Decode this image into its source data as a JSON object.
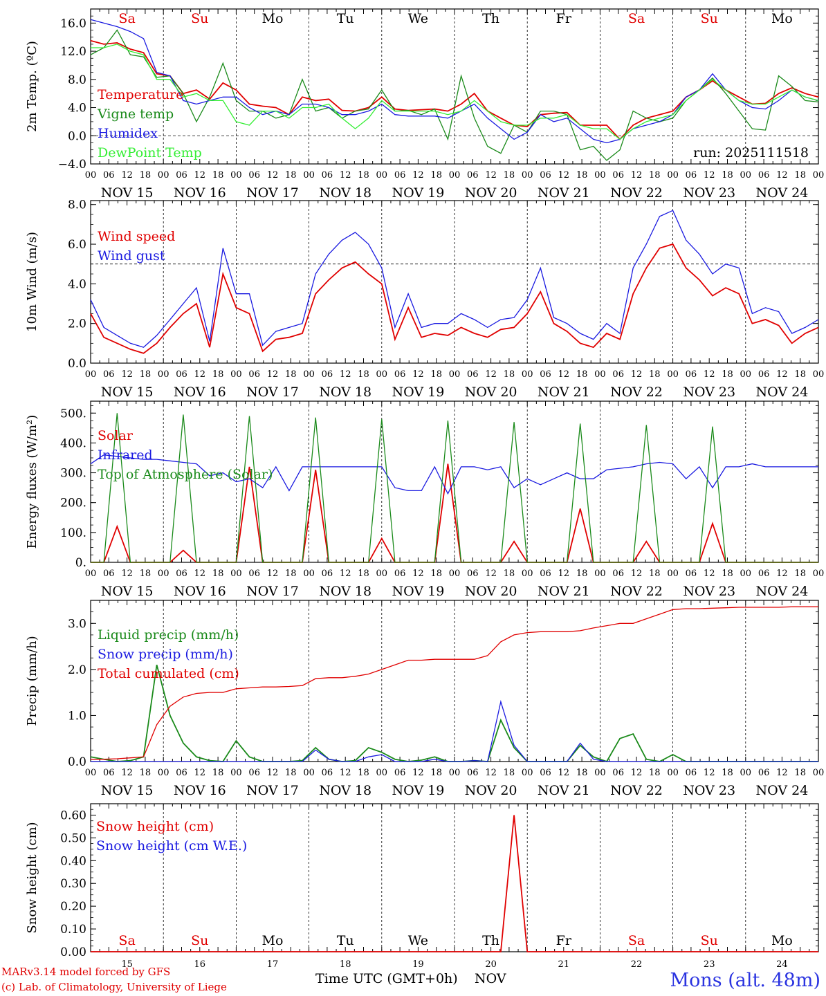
{
  "run_label": "run: 2025111518",
  "weekdays": [
    {
      "label": "Sa",
      "color": "#e00000"
    },
    {
      "label": "Su",
      "color": "#e00000"
    },
    {
      "label": "Mo",
      "color": "#000000"
    },
    {
      "label": "Tu",
      "color": "#000000"
    },
    {
      "label": "We",
      "color": "#000000"
    },
    {
      "label": "Th",
      "color": "#000000"
    },
    {
      "label": "Fr",
      "color": "#000000"
    },
    {
      "label": "Sa",
      "color": "#e00000"
    },
    {
      "label": "Su",
      "color": "#e00000"
    },
    {
      "label": "Mo",
      "color": "#000000"
    }
  ],
  "date_labels": [
    "NOV 15",
    "NOV 16",
    "NOV 17",
    "NOV 18",
    "NOV 19",
    "NOV 20",
    "NOV 21",
    "NOV 22",
    "NOV 23",
    "NOV 24"
  ],
  "hour_labels": [
    "00",
    "06",
    "12",
    "18"
  ],
  "day_numbers": [
    "15",
    "16",
    "17",
    "18",
    "19",
    "20",
    "21",
    "22",
    "23",
    "24"
  ],
  "colors": {
    "red": "#e00000",
    "green": "#1a8a1a",
    "blue": "#1a1ae0",
    "lightgreen": "#33ee33"
  },
  "chart_data": [
    {
      "type": "line",
      "ylabel": "2m Temp. (ºC)",
      "ylim": [
        -4,
        18
      ],
      "yticks": [
        -4,
        0,
        4,
        8,
        12,
        16
      ],
      "ytick_labels": [
        "−4.0",
        "0.0",
        "4.0",
        "8.0",
        "12.0",
        "16.0"
      ],
      "dashed_y": 0,
      "days": 10,
      "series": [
        {
          "name": "Temperature",
          "color": "#e00000",
          "values": [
            13.5,
            13.0,
            13.2,
            12.3,
            11.8,
            8.8,
            8.5,
            6.0,
            6.5,
            5.2,
            7.5,
            6.5,
            4.5,
            4.2,
            4.0,
            3.0,
            5.5,
            5.0,
            5.2,
            3.6,
            3.5,
            4.0,
            5.5,
            3.8,
            3.6,
            3.7,
            3.8,
            3.5,
            4.5,
            6.0,
            3.5,
            2.5,
            1.5,
            1.3,
            3.0,
            3.2,
            3.3,
            1.5,
            1.5,
            1.5,
            -0.5,
            1.5,
            2.5,
            3.0,
            3.5,
            5.5,
            6.5,
            7.8,
            6.5,
            5.5,
            4.5,
            4.6,
            6.0,
            6.8,
            6.0,
            5.5
          ]
        },
        {
          "name": "Vigne temp",
          "color": "#1a8a1a",
          "values": [
            11.5,
            12.5,
            15.0,
            11.5,
            11.2,
            8.3,
            8.5,
            6.0,
            2.0,
            5.5,
            10.3,
            5.0,
            3.5,
            3.5,
            2.5,
            3.0,
            8.0,
            3.5,
            4.0,
            2.5,
            3.5,
            3.8,
            6.5,
            3.5,
            3.6,
            3.0,
            3.8,
            -0.5,
            8.5,
            2.5,
            -1.5,
            -2.5,
            1.5,
            0.5,
            3.5,
            3.5,
            3.0,
            -2.0,
            -1.5,
            -3.5,
            -2.0,
            3.5,
            2.5,
            2.0,
            2.5,
            5.0,
            6.5,
            8.2,
            6.0,
            3.5,
            1.0,
            0.8,
            8.5,
            7.0,
            5.0,
            4.8
          ]
        },
        {
          "name": "Humidex",
          "color": "#1a1ae0",
          "values": [
            16.5,
            16.0,
            15.5,
            14.8,
            13.8,
            9.0,
            8.5,
            5.0,
            4.5,
            5.0,
            5.5,
            5.5,
            4.0,
            3.0,
            3.5,
            3.0,
            4.5,
            4.5,
            4.0,
            3.0,
            3.0,
            3.5,
            4.5,
            3.0,
            2.8,
            2.8,
            2.8,
            2.5,
            3.5,
            4.5,
            2.5,
            1.0,
            -0.5,
            0.5,
            3.0,
            2.0,
            2.5,
            1.0,
            -0.5,
            -1.0,
            -0.5,
            1.0,
            1.5,
            2.0,
            3.0,
            5.5,
            6.5,
            8.8,
            6.5,
            5.0,
            4.0,
            3.8,
            5.0,
            6.5,
            5.5,
            5.0
          ]
        },
        {
          "name": "DewPoint Temp",
          "color": "#33ee33",
          "values": [
            12.5,
            12.5,
            13.0,
            12.0,
            11.5,
            8.0,
            8.0,
            5.5,
            6.0,
            5.0,
            5.0,
            2.0,
            1.5,
            3.5,
            3.5,
            2.5,
            4.0,
            4.0,
            4.5,
            2.5,
            1.0,
            2.5,
            5.0,
            3.5,
            3.5,
            3.5,
            3.5,
            3.0,
            3.5,
            5.0,
            3.5,
            2.0,
            1.5,
            1.5,
            2.5,
            2.5,
            3.0,
            1.5,
            1.0,
            1.0,
            -0.5,
            1.0,
            2.0,
            2.5,
            3.0,
            5.0,
            6.5,
            8.0,
            6.5,
            5.0,
            4.5,
            4.5,
            5.5,
            6.5,
            5.5,
            5.0
          ]
        }
      ]
    },
    {
      "type": "line",
      "ylabel": "10m Wind (m/s)",
      "ylim": [
        0,
        8.2
      ],
      "yticks": [
        0,
        2,
        4,
        6,
        8
      ],
      "ytick_labels": [
        "0.0",
        "2.0",
        "4.0",
        "6.0",
        "8.0"
      ],
      "dashed_y": 5,
      "days": 10,
      "series": [
        {
          "name": "Wind speed",
          "color": "#e00000",
          "values": [
            2.5,
            1.3,
            1.0,
            0.7,
            0.5,
            1.0,
            1.8,
            2.5,
            3.0,
            0.8,
            4.5,
            2.8,
            2.5,
            0.6,
            1.2,
            1.3,
            1.5,
            3.5,
            4.2,
            4.8,
            5.1,
            4.5,
            4.0,
            1.2,
            2.8,
            1.3,
            1.5,
            1.4,
            1.8,
            1.5,
            1.3,
            1.7,
            1.8,
            2.5,
            3.6,
            2.0,
            1.6,
            1.0,
            0.8,
            1.5,
            1.2,
            3.5,
            4.8,
            5.8,
            6.0,
            4.8,
            4.2,
            3.4,
            3.8,
            3.5,
            2.0,
            2.2,
            1.9,
            1.0,
            1.5,
            1.8
          ]
        },
        {
          "name": "Wind gust",
          "color": "#1a1ae0",
          "values": [
            3.2,
            1.8,
            1.4,
            1.0,
            0.8,
            1.4,
            2.2,
            3.0,
            3.8,
            1.1,
            5.8,
            3.5,
            3.5,
            0.9,
            1.6,
            1.8,
            2.0,
            4.5,
            5.5,
            6.2,
            6.6,
            6.0,
            4.8,
            1.8,
            3.5,
            1.8,
            2.0,
            2.0,
            2.5,
            2.2,
            1.8,
            2.2,
            2.3,
            3.2,
            4.8,
            2.3,
            2.0,
            1.5,
            1.2,
            2.0,
            1.5,
            4.8,
            6.0,
            7.4,
            7.7,
            6.2,
            5.5,
            4.5,
            5.0,
            4.8,
            2.5,
            2.8,
            2.6,
            1.5,
            1.8,
            2.2
          ]
        }
      ]
    },
    {
      "type": "line",
      "ylabel": "Energy fluxes (W/m²)",
      "ylim": [
        0,
        540
      ],
      "yticks": [
        0,
        100,
        200,
        300,
        400,
        500
      ],
      "ytick_labels": [
        "0.",
        "100.",
        "200.",
        "300.",
        "400.",
        "500."
      ],
      "dashed_y": null,
      "days": 10,
      "series": [
        {
          "name": "Solar",
          "color": "#e00000",
          "values": [
            0,
            0,
            120,
            0,
            0,
            0,
            0,
            40,
            0,
            0,
            0,
            0,
            320,
            0,
            0,
            0,
            0,
            310,
            0,
            0,
            0,
            0,
            80,
            0,
            0,
            0,
            0,
            330,
            0,
            0,
            0,
            0,
            70,
            0,
            0,
            0,
            0,
            180,
            0,
            0,
            0,
            0,
            70,
            0,
            0,
            0,
            0,
            130,
            0,
            0,
            0,
            0,
            0,
            0,
            0,
            0
          ]
        },
        {
          "name": "Infrared",
          "color": "#1a1ae0",
          "values": [
            330,
            360,
            355,
            350,
            345,
            345,
            340,
            335,
            330,
            290,
            300,
            270,
            280,
            250,
            320,
            240,
            320,
            320,
            320,
            320,
            320,
            320,
            320,
            250,
            240,
            240,
            320,
            230,
            320,
            320,
            310,
            320,
            250,
            280,
            260,
            280,
            300,
            280,
            280,
            310,
            315,
            320,
            330,
            335,
            330,
            280,
            320,
            250,
            320,
            320,
            330,
            320,
            320,
            320,
            320,
            320
          ]
        },
        {
          "name": "Top of Atmosphere (Solar)",
          "color": "#1a8a1a",
          "values": [
            0,
            0,
            500,
            0,
            0,
            0,
            0,
            495,
            0,
            0,
            0,
            0,
            490,
            0,
            0,
            0,
            0,
            485,
            0,
            0,
            0,
            0,
            480,
            0,
            0,
            0,
            0,
            475,
            0,
            0,
            0,
            0,
            470,
            0,
            0,
            0,
            0,
            465,
            0,
            0,
            0,
            0,
            460,
            0,
            0,
            0,
            0,
            455,
            0,
            0,
            0,
            0,
            0,
            0,
            0,
            0
          ]
        }
      ]
    },
    {
      "type": "line",
      "ylabel": "Precip (mm/h)",
      "ylim": [
        0,
        3.5
      ],
      "yticks": [
        0,
        1,
        2,
        3
      ],
      "ytick_labels": [
        "0.0",
        "1.0",
        "2.0",
        "3.0"
      ],
      "dashed_y": null,
      "days": 10,
      "series": [
        {
          "name": "Liquid precip (mm/h)",
          "color": "#1a8a1a",
          "values": [
            0.1,
            0.05,
            0,
            0.02,
            0.1,
            2.1,
            1.0,
            0.4,
            0.1,
            0.02,
            0,
            0.45,
            0.1,
            0,
            0,
            0,
            0.02,
            0.3,
            0.05,
            0,
            0.02,
            0.3,
            0.2,
            0.05,
            0,
            0.03,
            0.1,
            0,
            0,
            0.02,
            0,
            0.9,
            0.3,
            0,
            0,
            0,
            0,
            0.35,
            0.1,
            0,
            0.5,
            0.6,
            0.05,
            0,
            0.15,
            0,
            0,
            0,
            0,
            0,
            0,
            0,
            0,
            0,
            0,
            0
          ]
        },
        {
          "name": "Snow precip (mm/h)",
          "color": "#1a1ae0",
          "values": [
            0,
            0,
            0,
            0,
            0,
            0,
            0,
            0,
            0,
            0,
            0,
            0,
            0,
            0,
            0,
            0,
            0,
            0.25,
            0.05,
            0,
            0,
            0.1,
            0.15,
            0,
            0,
            0,
            0.05,
            0,
            0,
            0.02,
            0,
            1.3,
            0.35,
            0,
            0,
            0,
            0,
            0.4,
            0.05,
            0,
            0,
            0,
            0,
            0,
            0,
            0,
            0,
            0,
            0,
            0,
            0,
            0,
            0,
            0,
            0,
            0
          ]
        },
        {
          "name": "Total cumulated (cm)",
          "color": "#e00000",
          "values": [
            0.05,
            0.05,
            0.06,
            0.08,
            0.1,
            0.8,
            1.2,
            1.4,
            1.48,
            1.5,
            1.5,
            1.58,
            1.6,
            1.62,
            1.62,
            1.63,
            1.65,
            1.8,
            1.82,
            1.82,
            1.85,
            1.9,
            2.0,
            2.1,
            2.2,
            2.2,
            2.22,
            2.22,
            2.22,
            2.22,
            2.3,
            2.6,
            2.75,
            2.8,
            2.82,
            2.82,
            2.82,
            2.84,
            2.9,
            2.95,
            3.0,
            3.0,
            3.1,
            3.2,
            3.3,
            3.32,
            3.32,
            3.33,
            3.34,
            3.35,
            3.35,
            3.35,
            3.35,
            3.36,
            3.36,
            3.36
          ]
        }
      ]
    },
    {
      "type": "line",
      "ylabel": "Snow height (cm)",
      "ylim": [
        0,
        0.65
      ],
      "yticks": [
        0,
        0.1,
        0.2,
        0.3,
        0.4,
        0.5,
        0.6
      ],
      "ytick_labels": [
        "0.00",
        "0.10",
        "0.20",
        "0.30",
        "0.40",
        "0.50",
        "0.60"
      ],
      "dashed_y": null,
      "days": 10,
      "series": [
        {
          "name": "Snow height (cm)",
          "color": "#e00000",
          "values": [
            0,
            0,
            0,
            0,
            0,
            0,
            0,
            0,
            0,
            0,
            0,
            0,
            0,
            0,
            0,
            0,
            0,
            0,
            0,
            0,
            0,
            0,
            0,
            0,
            0,
            0,
            0,
            0,
            0,
            0,
            0,
            0,
            0.6,
            0,
            0,
            0,
            0,
            0,
            0,
            0,
            0,
            0,
            0,
            0,
            0,
            0,
            0,
            0,
            0,
            0,
            0,
            0,
            0,
            0,
            0,
            0
          ]
        },
        {
          "name": "Snow height (cm W.E.)",
          "color": "#1a1ae0",
          "values": []
        }
      ]
    }
  ],
  "footer": {
    "credit_line1": "MARv3.14 model forced by GFS",
    "credit_line2": "(c) Lab. of Climatology, University of Liege",
    "xlabel": "Time UTC (GMT+0h)",
    "month": "NOV",
    "station": "Mons (alt. 48m)"
  }
}
